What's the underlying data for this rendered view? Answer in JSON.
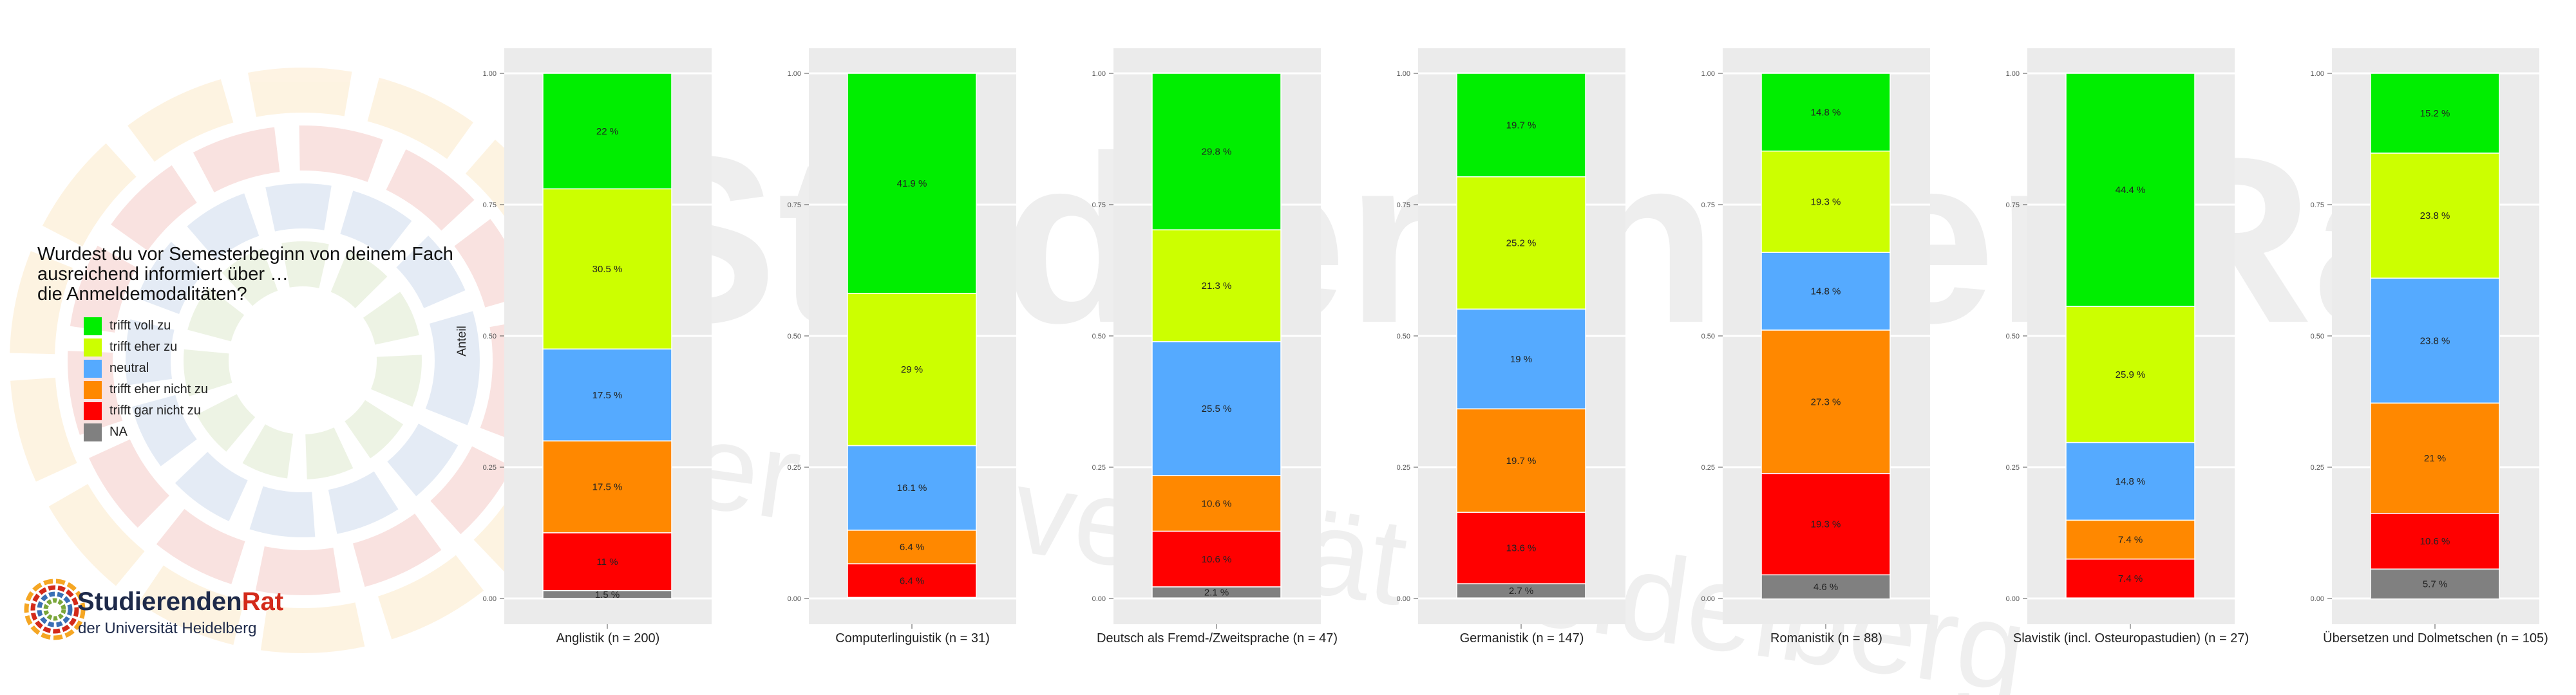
{
  "title": "Wurdest du vor Semesterbeginn von deinem Fach\nausreichend informiert über …\ndie Anmeldemodalitäten?",
  "ylabel": "Anteil",
  "legend": [
    {
      "label": "trifft voll zu",
      "color": "#00ee00"
    },
    {
      "label": "trifft eher zu",
      "color": "#ccff00"
    },
    {
      "label": "neutral",
      "color": "#55aaff"
    },
    {
      "label": "trifft eher nicht zu",
      "color": "#ff8800"
    },
    {
      "label": "trifft gar nicht zu",
      "color": "#ff0000"
    },
    {
      "label": "NA",
      "color": "#808080"
    }
  ],
  "logo": {
    "name_part1": "Studierenden",
    "name_part2": "Rat",
    "subtitle": "der Universität Heidelberg"
  },
  "watermark": {
    "line1": "StudierendenRat",
    "line2": "der Universität Heidelberg"
  },
  "chart_data": {
    "type": "bar",
    "stacked": true,
    "ylabel": "Anteil",
    "ylim": [
      0,
      1
    ],
    "yticks": [
      "0.00",
      "0.25",
      "0.50",
      "0.75",
      "1.00"
    ],
    "categories": [
      "trifft voll zu",
      "trifft eher zu",
      "neutral",
      "trifft eher nicht zu",
      "trifft gar nicht zu",
      "NA"
    ],
    "panels": [
      {
        "label": "Anglistik (n = 200)",
        "segments": [
          {
            "cat": 0,
            "value": 0.22,
            "label": "22 %"
          },
          {
            "cat": 1,
            "value": 0.305,
            "label": "30.5 %"
          },
          {
            "cat": 2,
            "value": 0.175,
            "label": "17.5 %"
          },
          {
            "cat": 3,
            "value": 0.175,
            "label": "17.5 %"
          },
          {
            "cat": 4,
            "value": 0.11,
            "label": "11 %"
          },
          {
            "cat": 5,
            "value": 0.015,
            "label": "1.5 %"
          }
        ]
      },
      {
        "label": "Computerlinguistik (n = 31)",
        "segments": [
          {
            "cat": 0,
            "value": 0.419,
            "label": "41.9 %"
          },
          {
            "cat": 1,
            "value": 0.29,
            "label": "29 %"
          },
          {
            "cat": 2,
            "value": 0.161,
            "label": "16.1 %"
          },
          {
            "cat": 3,
            "value": 0.064,
            "label": "6.4 %"
          },
          {
            "cat": 4,
            "value": 0.064,
            "label": "6.4 %"
          }
        ]
      },
      {
        "label": "Deutsch als Fremd-/Zweitsprache (n = 47)",
        "segments": [
          {
            "cat": 0,
            "value": 0.298,
            "label": "29.8 %"
          },
          {
            "cat": 1,
            "value": 0.213,
            "label": "21.3 %"
          },
          {
            "cat": 2,
            "value": 0.255,
            "label": "25.5 %"
          },
          {
            "cat": 3,
            "value": 0.106,
            "label": "10.6 %"
          },
          {
            "cat": 4,
            "value": 0.106,
            "label": "10.6 %"
          },
          {
            "cat": 5,
            "value": 0.021,
            "label": "2.1 %"
          }
        ]
      },
      {
        "label": "Germanistik (n = 147)",
        "segments": [
          {
            "cat": 0,
            "value": 0.197,
            "label": "19.7 %"
          },
          {
            "cat": 1,
            "value": 0.252,
            "label": "25.2 %"
          },
          {
            "cat": 2,
            "value": 0.19,
            "label": "19 %"
          },
          {
            "cat": 3,
            "value": 0.197,
            "label": "19.7 %"
          },
          {
            "cat": 4,
            "value": 0.136,
            "label": "13.6 %"
          },
          {
            "cat": 5,
            "value": 0.027,
            "label": "2.7 %"
          }
        ]
      },
      {
        "label": "Romanistik (n = 88)",
        "segments": [
          {
            "cat": 0,
            "value": 0.148,
            "label": "14.8 %"
          },
          {
            "cat": 1,
            "value": 0.193,
            "label": "19.3 %"
          },
          {
            "cat": 2,
            "value": 0.148,
            "label": "14.8 %"
          },
          {
            "cat": 3,
            "value": 0.273,
            "label": "27.3 %"
          },
          {
            "cat": 4,
            "value": 0.193,
            "label": "19.3 %"
          },
          {
            "cat": 5,
            "value": 0.046,
            "label": "4.6 %"
          }
        ]
      },
      {
        "label": "Slavistik (incl. Osteuropastudien) (n = 27)",
        "segments": [
          {
            "cat": 0,
            "value": 0.444,
            "label": "44.4 %"
          },
          {
            "cat": 1,
            "value": 0.259,
            "label": "25.9 %"
          },
          {
            "cat": 2,
            "value": 0.148,
            "label": "14.8 %"
          },
          {
            "cat": 3,
            "value": 0.074,
            "label": "7.4 %"
          },
          {
            "cat": 4,
            "value": 0.074,
            "label": "7.4 %"
          }
        ]
      },
      {
        "label": "Übersetzen und Dolmetschen (n = 105)",
        "segments": [
          {
            "cat": 0,
            "value": 0.152,
            "label": "15.2 %"
          },
          {
            "cat": 1,
            "value": 0.238,
            "label": "23.8 %"
          },
          {
            "cat": 2,
            "value": 0.238,
            "label": "23.8 %"
          },
          {
            "cat": 3,
            "value": 0.21,
            "label": "21 %"
          },
          {
            "cat": 4,
            "value": 0.106,
            "label": "10.6 %"
          },
          {
            "cat": 5,
            "value": 0.057,
            "label": "5.7 %"
          }
        ]
      }
    ]
  }
}
